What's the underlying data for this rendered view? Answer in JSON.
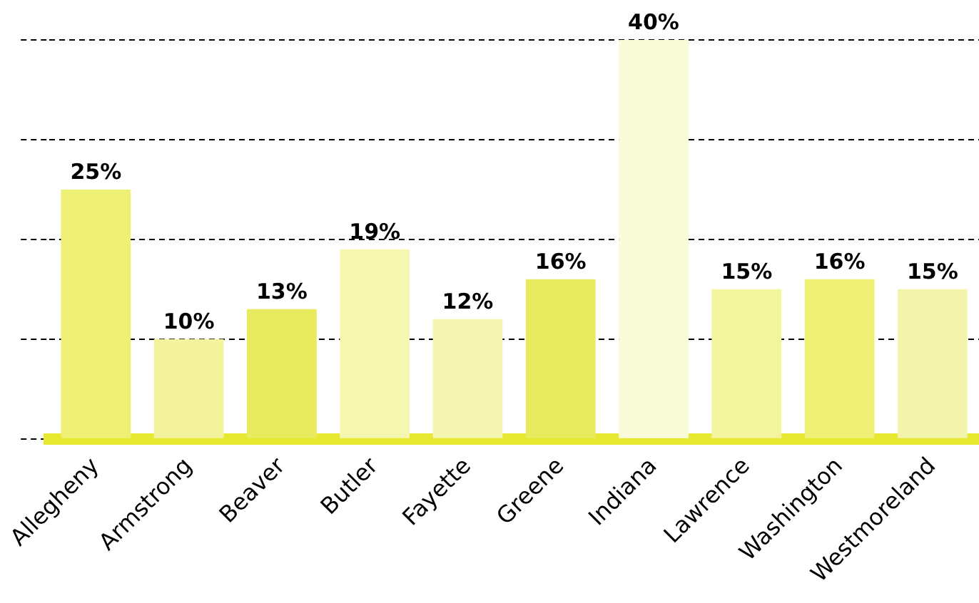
{
  "chart_data": {
    "type": "bar",
    "categories": [
      "Allegheny",
      "Armstrong",
      "Beaver",
      "Butler",
      "Fayette",
      "Greene",
      "Indiana",
      "Lawrence",
      "Washington",
      "Westmoreland"
    ],
    "values": [
      25,
      10,
      13,
      19,
      12,
      16,
      40,
      15,
      16,
      15
    ],
    "colors": [
      "#eef073",
      "#f2f39c",
      "#e9eb5e",
      "#f5f6b0",
      "#f4f5b0",
      "#e9eb5e",
      "#fafbd8",
      "#f3f49e",
      "#eef073",
      "#f3f4ab"
    ],
    "value_labels": [
      "25%",
      "10%",
      "13%",
      "19%",
      "12%",
      "16%",
      "40%",
      "15%",
      "16%",
      "15%"
    ],
    "ylim": [
      0,
      40
    ],
    "yticks": [
      {
        "value": 0,
        "label": null
      },
      {
        "value": 10,
        "label": null
      },
      {
        "value": 20,
        "label": null
      },
      {
        "value": 30,
        "label": null
      },
      {
        "value": 40,
        "label": null
      }
    ],
    "grid": "y",
    "line_style": "dashed",
    "tick_labels": "x",
    "legend": false
  }
}
